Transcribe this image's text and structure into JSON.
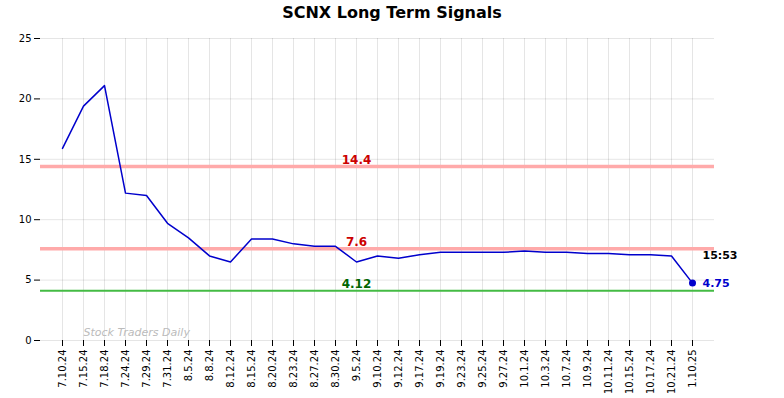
{
  "chart_data": {
    "type": "line",
    "title": "SCNX Long Term Signals",
    "categories": [
      "7.10.24",
      "7.15.24",
      "7.18.24",
      "7.24.24",
      "7.29.24",
      "7.31.24",
      "8.5.24",
      "8.8.24",
      "8.12.24",
      "8.15.24",
      "8.20.24",
      "8.23.24",
      "8.27.24",
      "8.30.24",
      "9.5.24",
      "9.10.24",
      "9.12.24",
      "9.17.24",
      "9.19.24",
      "9.23.24",
      "9.25.24",
      "9.27.24",
      "10.1.24",
      "10.3.24",
      "10.7.24",
      "10.9.24",
      "10.11.24",
      "10.15.24",
      "10.17.24",
      "10.21.24",
      "1.10.25"
    ],
    "values": [
      15.9,
      19.4,
      21.1,
      12.2,
      12.0,
      9.7,
      8.5,
      7.0,
      6.5,
      8.4,
      8.4,
      8.0,
      7.8,
      7.8,
      6.5,
      7.0,
      6.8,
      7.1,
      7.3,
      7.3,
      7.3,
      7.3,
      7.4,
      7.3,
      7.3,
      7.2,
      7.2,
      7.1,
      7.1,
      7.0,
      4.75
    ],
    "color": "#0000cc",
    "hlines": [
      {
        "value": 14.4,
        "color": "#ffaaaa",
        "label_color": "#cc0000"
      },
      {
        "value": 7.6,
        "color": "#ffaaaa",
        "label_color": "#cc0000"
      },
      {
        "value": 4.12,
        "color": "#44bb44",
        "label_color": "#006600"
      }
    ],
    "annotations": [
      {
        "text": "15:53",
        "x": "1.10.25",
        "y": 7.0,
        "color": "#000000"
      },
      {
        "text": "4.75",
        "x": "1.10.25",
        "y": 4.75,
        "color": "#0000cc"
      },
      {
        "text": "Stock Traders Daily",
        "x": "7.15.24",
        "y": 0.4,
        "color": "#bbbbbb"
      }
    ],
    "ylim": [
      0,
      25
    ],
    "yticks": [
      0,
      5,
      10,
      15,
      20,
      25
    ],
    "grid": true
  }
}
